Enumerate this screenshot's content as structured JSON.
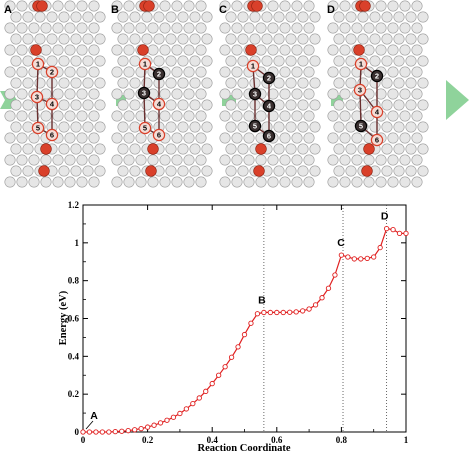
{
  "panels": [
    {
      "letter": "A",
      "atom_labels": [
        "1",
        "2",
        "3",
        "4",
        "5",
        "6"
      ]
    },
    {
      "letter": "B",
      "atom_labels": [
        "1",
        "2",
        "3",
        "4",
        "5",
        "6"
      ]
    },
    {
      "letter": "C",
      "atom_labels": [
        "1",
        "2",
        "3",
        "4",
        "5",
        "6"
      ]
    },
    {
      "letter": "D",
      "atom_labels": [
        "1",
        "2",
        "3",
        "4",
        "5",
        "6"
      ]
    }
  ],
  "colors": {
    "atom_white": "#e6e6e6",
    "atom_red": "#d9402a",
    "atom_dark": "#3a3030",
    "arrow": "#8fd39b",
    "curve": "#e02020"
  },
  "chart_data": {
    "type": "line",
    "xlabel": "Reaction Coordinate",
    "ylabel": "Energy (eV)",
    "xlim": [
      0,
      1
    ],
    "ylim": [
      0,
      1.2
    ],
    "xticks": [
      "0",
      "0.2",
      "0.4",
      "0.6",
      "0.8",
      "1"
    ],
    "yticks": [
      "0",
      "0.2",
      "0.4",
      "0.6",
      "0.8",
      "1",
      "1.2"
    ],
    "x": [
      0.0,
      0.02,
      0.04,
      0.06,
      0.08,
      0.1,
      0.12,
      0.14,
      0.16,
      0.18,
      0.2,
      0.22,
      0.24,
      0.26,
      0.28,
      0.3,
      0.32,
      0.34,
      0.36,
      0.38,
      0.4,
      0.42,
      0.44,
      0.46,
      0.48,
      0.5,
      0.52,
      0.54,
      0.56,
      0.58,
      0.6,
      0.62,
      0.64,
      0.66,
      0.68,
      0.7,
      0.72,
      0.74,
      0.76,
      0.78,
      0.8,
      0.82,
      0.84,
      0.86,
      0.88,
      0.9,
      0.92,
      0.94,
      0.96,
      0.98,
      1.0
    ],
    "y": [
      0.0,
      0.0,
      0.0,
      0.0,
      0.0,
      0.002,
      0.004,
      0.007,
      0.012,
      0.018,
      0.026,
      0.036,
      0.048,
      0.062,
      0.078,
      0.098,
      0.122,
      0.15,
      0.18,
      0.215,
      0.256,
      0.3,
      0.345,
      0.395,
      0.45,
      0.515,
      0.575,
      0.625,
      0.632,
      0.632,
      0.632,
      0.632,
      0.633,
      0.635,
      0.64,
      0.65,
      0.672,
      0.71,
      0.76,
      0.83,
      0.935,
      0.925,
      0.915,
      0.915,
      0.918,
      0.925,
      0.975,
      1.075,
      1.07,
      1.05,
      1.05
    ],
    "annotations": [
      {
        "label": "A",
        "x": 0.0,
        "y": 0.0
      },
      {
        "label": "B",
        "x": 0.56,
        "y": 0.632
      },
      {
        "label": "C",
        "x": 0.805,
        "y": 0.935
      },
      {
        "label": "D",
        "x": 0.94,
        "y": 1.075
      }
    ],
    "vlines": [
      0.56,
      0.805,
      0.94
    ],
    "grid": false
  }
}
